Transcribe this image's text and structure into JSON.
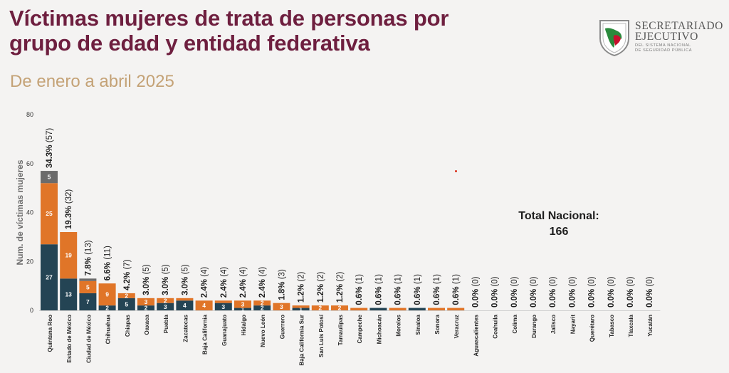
{
  "header": {
    "title_line1": "Víctimas mujeres de trata de personas por",
    "title_line2": "grupo de edad y entidad federativa",
    "subtitle": "De enero a abril 2025"
  },
  "logo": {
    "name_line1": "SECRETARIADO",
    "name_line2": "EJECUTIVO",
    "sub_line1": "DEL SISTEMA NACIONAL",
    "sub_line2": "DE SEGURIDAD PÚBLICA"
  },
  "total": {
    "label": "Total Nacional:",
    "value": "166"
  },
  "colors": {
    "navy": "#244454",
    "orange": "#e07528",
    "gray": "#6b6b6b",
    "title": "#6e1f3f",
    "subtitle": "#c4a276"
  },
  "chart_data": {
    "type": "bar",
    "stacked": true,
    "ylabel": "Num. de víctimas mujeres",
    "xlabel": "",
    "ylim": [
      0,
      80
    ],
    "yticks": [
      0,
      20,
      40,
      60,
      80
    ],
    "grid": false,
    "legend": "none",
    "categories": [
      "Quintana Roo",
      "Estado de México",
      "Ciudad de México",
      "Chihuahua",
      "Chiapas",
      "Oaxaca",
      "Puebla",
      "Zacatecas",
      "Baja California",
      "Guanajuato",
      "Hidalgo",
      "Nuevo León",
      "Guerrero",
      "Baja California Sur",
      "San Luis Potosí",
      "Tamaulipas",
      "Campeche",
      "Michoacán",
      "Morelos",
      "Sinaloa",
      "Sonora",
      "Veracruz",
      "Aguascalientes",
      "Coahuila",
      "Colima",
      "Durango",
      "Jalisco",
      "Nayarit",
      "Querétaro",
      "Tabasco",
      "Tlaxcala",
      "Yucatán"
    ],
    "series": [
      {
        "color": "#244454",
        "values": [
          27,
          13,
          7,
          2,
          5,
          2,
          3,
          4,
          0,
          3,
          1,
          2,
          0,
          1,
          0,
          0,
          0,
          1,
          0,
          1,
          0,
          0,
          0,
          0,
          0,
          0,
          0,
          0,
          0,
          0,
          0,
          0
        ]
      },
      {
        "color": "#e07528",
        "values": [
          25,
          19,
          5,
          9,
          2,
          3,
          2,
          1,
          4,
          1,
          3,
          2,
          3,
          1,
          2,
          2,
          1,
          0,
          1,
          0,
          1,
          1,
          0,
          0,
          0,
          0,
          0,
          0,
          0,
          0,
          0,
          0
        ]
      },
      {
        "color": "#6b6b6b",
        "values": [
          5,
          0,
          1,
          0,
          0,
          0,
          0,
          0,
          0,
          0,
          0,
          0,
          0,
          0,
          0,
          0,
          0,
          0,
          0,
          0,
          0,
          0,
          0,
          0,
          0,
          0,
          0,
          0,
          0,
          0,
          0,
          0
        ]
      }
    ],
    "segment_labels": [
      [
        "27",
        "13",
        "7",
        "2",
        "5",
        "2",
        "3",
        "4",
        "",
        "3",
        "1",
        "2",
        "",
        "1",
        "",
        "",
        "",
        "",
        "",
        "",
        "",
        "",
        "",
        "",
        "",
        "",
        "",
        "",
        "",
        "",
        "",
        ""
      ],
      [
        "25",
        "19",
        "5",
        "9",
        "2",
        "3",
        "2",
        "",
        "4",
        "",
        "3",
        "2",
        "3",
        "",
        "2",
        "2",
        "",
        "",
        "",
        "",
        "",
        "",
        "",
        "",
        "",
        "",
        "",
        "",
        "",
        "",
        "",
        ""
      ],
      [
        "5",
        "",
        "",
        "",
        "",
        "",
        "",
        "",
        "",
        "",
        "",
        "",
        "",
        "",
        "",
        "",
        "",
        "",
        "",
        "",
        "",
        "",
        "",
        "",
        "",
        "",
        "",
        "",
        "",
        "",
        "",
        ""
      ]
    ],
    "totals": [
      57,
      32,
      13,
      11,
      7,
      5,
      5,
      5,
      4,
      4,
      4,
      4,
      3,
      2,
      2,
      2,
      1,
      1,
      1,
      1,
      1,
      1,
      0,
      0,
      0,
      0,
      0,
      0,
      0,
      0,
      0,
      0
    ],
    "percent_labels": [
      "34.3%",
      "19.3%",
      "7.8%",
      "6.6%",
      "4.2%",
      "3.0%",
      "3.0%",
      "3.0%",
      "2.4%",
      "2.4%",
      "2.4%",
      "2.4%",
      "1.8%",
      "1.2%",
      "1.2%",
      "1.2%",
      "0.6%",
      "0.6%",
      "0.6%",
      "0.6%",
      "0.6%",
      "0.6%",
      "0.0%",
      "0.0%",
      "0.0%",
      "0.0%",
      "0.0%",
      "0.0%",
      "0.0%",
      "0.0%",
      "0.0%",
      "0.0%"
    ]
  }
}
